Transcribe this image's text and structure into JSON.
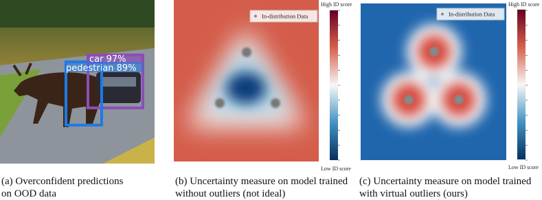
{
  "panels": [
    {
      "detections": [
        "car 97%",
        "pedestrian 89%"
      ],
      "caption": [
        "(a) Overconfident predictions",
        "on OOD data"
      ]
    },
    {
      "legend": "In-distribution Data",
      "colorbar_top": "High ID score",
      "colorbar_bottom": "Low ID score",
      "caption": [
        "(b) Uncertainty measure on model trained",
        "without outliers (not ideal)"
      ]
    },
    {
      "legend": "In-distribution Data",
      "colorbar_top": "High ID score",
      "colorbar_bottom": "Low ID score",
      "caption": [
        "(c) Uncertainty measure on model trained",
        "with virtual outliers (ours)"
      ]
    }
  ]
}
